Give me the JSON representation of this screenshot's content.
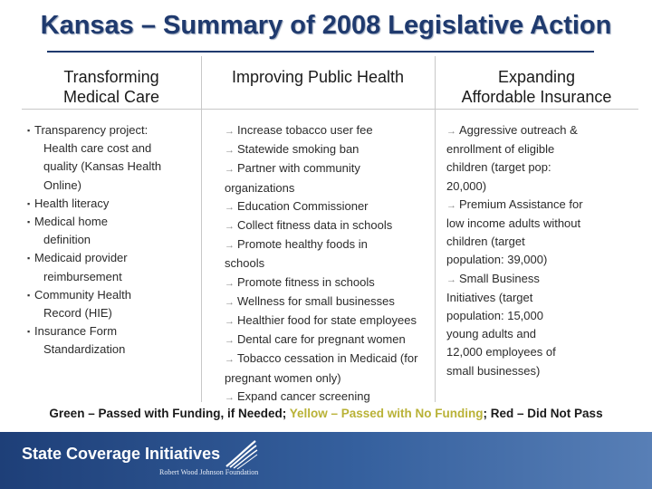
{
  "title": "Kansas – Summary of 2008 Legislative Action",
  "columns": [
    {
      "heading_lines": [
        "Transforming",
        "Medical Care"
      ],
      "items": [
        [
          "Transparency project:",
          "Health care cost and",
          "quality (Kansas Health",
          "Online)"
        ],
        [
          "Health literacy"
        ],
        [
          "Medical home",
          "definition"
        ],
        [
          "Medicaid provider",
          "reimbursement"
        ],
        [
          "Community Health",
          "Record (HIE)"
        ],
        [
          "Insurance Form",
          "Standardization"
        ]
      ]
    },
    {
      "heading_lines": [
        "Improving Public Health"
      ],
      "items": [
        [
          "Increase tobacco user fee"
        ],
        [
          "Statewide smoking ban"
        ],
        [
          "Partner with community",
          "organizations"
        ],
        [
          "Education Commissioner"
        ],
        [
          "Collect fitness data in schools"
        ],
        [
          "Promote healthy foods in",
          "schools"
        ],
        [
          "Promote fitness in schools"
        ],
        [
          "Wellness for small businesses"
        ],
        [
          "Healthier food for state employees"
        ],
        [
          "Dental care for pregnant women"
        ],
        [
          "Tobacco cessation in Medicaid (for",
          "pregnant women only)"
        ],
        [
          "Expand cancer screening"
        ]
      ]
    },
    {
      "heading_lines": [
        "Expanding",
        "Affordable Insurance"
      ],
      "items": [
        [
          "Aggressive outreach &",
          "enrollment of eligible",
          "children (target pop:",
          "20,000)"
        ],
        [
          "Premium Assistance for",
          "low income adults without",
          "children (target",
          "population: 39,000)"
        ],
        [
          "Small Business",
          "Initiatives (target",
          "population: 15,000",
          "young adults and",
          "12,000 employees of",
          "small businesses)"
        ]
      ]
    }
  ],
  "legend": {
    "green": "Green – Passed with Funding, if Needed",
    "yellow": "Yellow – Passed with No Funding",
    "red": "Red – Did Not Pass",
    "separator": ";"
  },
  "footer": {
    "organization": "State Coverage Initiatives",
    "sponsor": "Robert Wood Johnson Foundation"
  },
  "colors": {
    "title": "#1f3a6e",
    "yellow_text": "#b9b237",
    "footer_bar": "#1e3f78"
  },
  "icons": {
    "bullet_col1": "square-bullet-icon",
    "bullet_col2_col3": "arrow-right-icon",
    "footer_logo": "rwjf-swoosh-logo-icon"
  }
}
